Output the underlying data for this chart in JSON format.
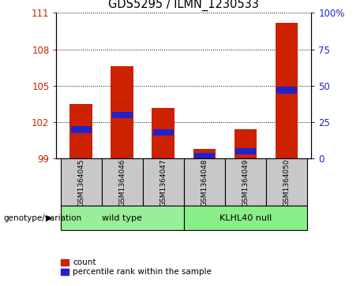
{
  "title": "GDS5295 / ILMN_1230533",
  "samples": [
    "GSM1364045",
    "GSM1364046",
    "GSM1364047",
    "GSM1364048",
    "GSM1364049",
    "GSM1364050"
  ],
  "count_values": [
    103.5,
    106.6,
    103.2,
    99.8,
    101.4,
    110.2
  ],
  "percentile_values": [
    20,
    30,
    18,
    2,
    5,
    47
  ],
  "ylim_left": [
    99,
    111
  ],
  "ylim_right": [
    0,
    100
  ],
  "yticks_left": [
    99,
    102,
    105,
    108,
    111
  ],
  "yticks_right": [
    0,
    25,
    50,
    75,
    100
  ],
  "ytick_labels_right": [
    "0",
    "25",
    "50",
    "75",
    "100%"
  ],
  "bar_color": "#cc2200",
  "percentile_color": "#2222cc",
  "bar_bottom": 99,
  "wild_type_label": "wild type",
  "klhl40_label": "KLHL40 null",
  "genotype_label": "genotype/variation",
  "group_color_wt": "#99ee99",
  "group_color_kl": "#88ee88",
  "sample_box_color": "#c8c8c8",
  "legend_count_label": "count",
  "legend_percentile_label": "percentile rank within the sample",
  "bg_color": "#ffffff",
  "tick_color_left": "#cc2200",
  "tick_color_right": "#2222cc",
  "bar_width": 0.55
}
